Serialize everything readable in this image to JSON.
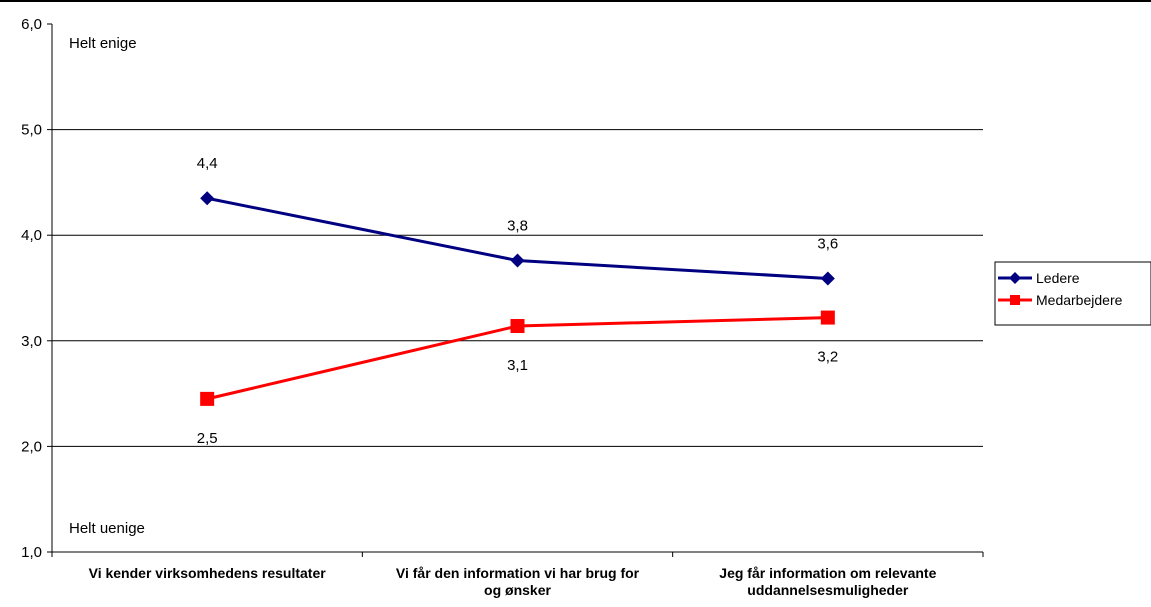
{
  "chart_data": {
    "type": "line",
    "categories": [
      [
        "Vi kender virksomhedens resultater"
      ],
      [
        "Vi får den information vi har brug for",
        "og ønsker"
      ],
      [
        "Jeg får information om relevante",
        "uddannelsesmuligheder"
      ]
    ],
    "series": [
      {
        "name": "Ledere",
        "color": "#000080",
        "marker": "diamond",
        "values": [
          4.35,
          3.76,
          3.59
        ],
        "labels": [
          "4,4",
          "3,8",
          "3,6"
        ]
      },
      {
        "name": "Medarbejdere",
        "color": "#ff0000",
        "marker": "square",
        "values": [
          2.45,
          3.14,
          3.22
        ],
        "labels": [
          "2,5",
          "3,1",
          "3,2"
        ]
      }
    ],
    "ylim": [
      1,
      6
    ],
    "yticks": [
      "1,0",
      "2,0",
      "3,0",
      "4,0",
      "5,0",
      "6,0"
    ],
    "annotations": {
      "top": "Helt enige",
      "bottom": "Helt uenige"
    },
    "grid": true,
    "legend": "right"
  }
}
